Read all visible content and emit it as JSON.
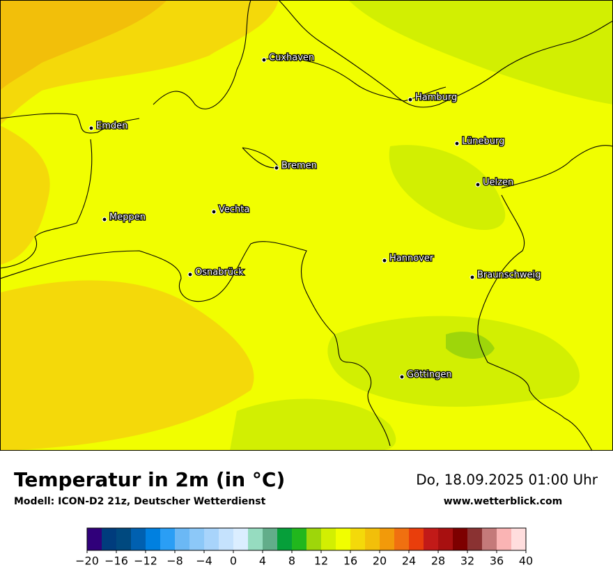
{
  "header": {
    "title": "Temperatur in 2m (in °C)",
    "subtitle": "Modell: ICON-D2 21z, Deutscher Wetterdienst",
    "date": "Do, 18.09.2025 01:00 Uhr",
    "website": "www.wetterblick.com"
  },
  "map": {
    "cities": [
      "Cuxhaven",
      "Hamburg",
      "Emden",
      "Lüneburg",
      "Bremen",
      "Uelzen",
      "Vechta",
      "Meppen",
      "Hannover",
      "Osnabrück",
      "Braunschweig",
      "Göttingen"
    ]
  },
  "colorbar": {
    "range": [
      -20,
      40
    ],
    "colors": [
      "#30007a",
      "#003c7d",
      "#00497f",
      "#0060b0",
      "#0080e0",
      "#2a9ef5",
      "#6bb8f5",
      "#8cc8f8",
      "#a8d4fb",
      "#c5e2fd",
      "#dbeeff",
      "#96dcc0",
      "#62ad8a",
      "#069f3a",
      "#21b71d",
      "#9ed60a",
      "#d2ef02",
      "#f1fe00",
      "#f4d90a",
      "#f2bf0a",
      "#f29a0a",
      "#f07010",
      "#e93e0c",
      "#c21a18",
      "#a81010",
      "#7d0000",
      "#8a3232",
      "#c47a7a",
      "#fab4b4",
      "#ffdede"
    ],
    "ticks": [
      {
        "value": -20,
        "label": "−20"
      },
      {
        "value": -16,
        "label": "−16"
      },
      {
        "value": -12,
        "label": "−12"
      },
      {
        "value": -8,
        "label": "−8"
      },
      {
        "value": -4,
        "label": "−4"
      },
      0,
      4,
      8,
      12,
      16,
      20,
      24,
      28,
      32,
      36,
      40
    ]
  }
}
